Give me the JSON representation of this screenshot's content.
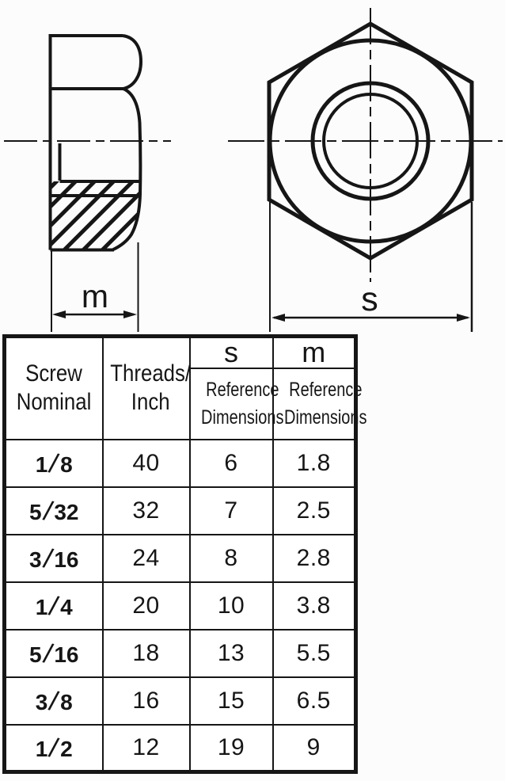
{
  "drawings": {
    "side_view": {
      "dim_label": "m"
    },
    "top_view": {
      "dim_label": "s"
    }
  },
  "table": {
    "header": {
      "screw_nominal": "Screw\nNominal",
      "threads_per_inch": "Threads/\nInch",
      "s_label": "s",
      "m_label": "m",
      "s_sub_label": "Reference\nDimensions",
      "m_sub_label": "Reference\nDimensions"
    },
    "rows": [
      {
        "nominal": "1/8",
        "threads_per_inch": "40",
        "s": "6",
        "m": "1.8"
      },
      {
        "nominal": "5/32",
        "threads_per_inch": "32",
        "s": "7",
        "m": "2.5"
      },
      {
        "nominal": "3/16",
        "threads_per_inch": "24",
        "s": "8",
        "m": "2.8"
      },
      {
        "nominal": "1/4",
        "threads_per_inch": "20",
        "s": "10",
        "m": "3.8"
      },
      {
        "nominal": "5/16",
        "threads_per_inch": "18",
        "s": "13",
        "m": "5.5"
      },
      {
        "nominal": "3/8",
        "threads_per_inch": "16",
        "s": "15",
        "m": "6.5"
      },
      {
        "nominal": "1/2",
        "threads_per_inch": "12",
        "s": "19",
        "m": "9"
      }
    ]
  },
  "colors": {
    "line": "#161616",
    "background": "#fcfcfc"
  }
}
